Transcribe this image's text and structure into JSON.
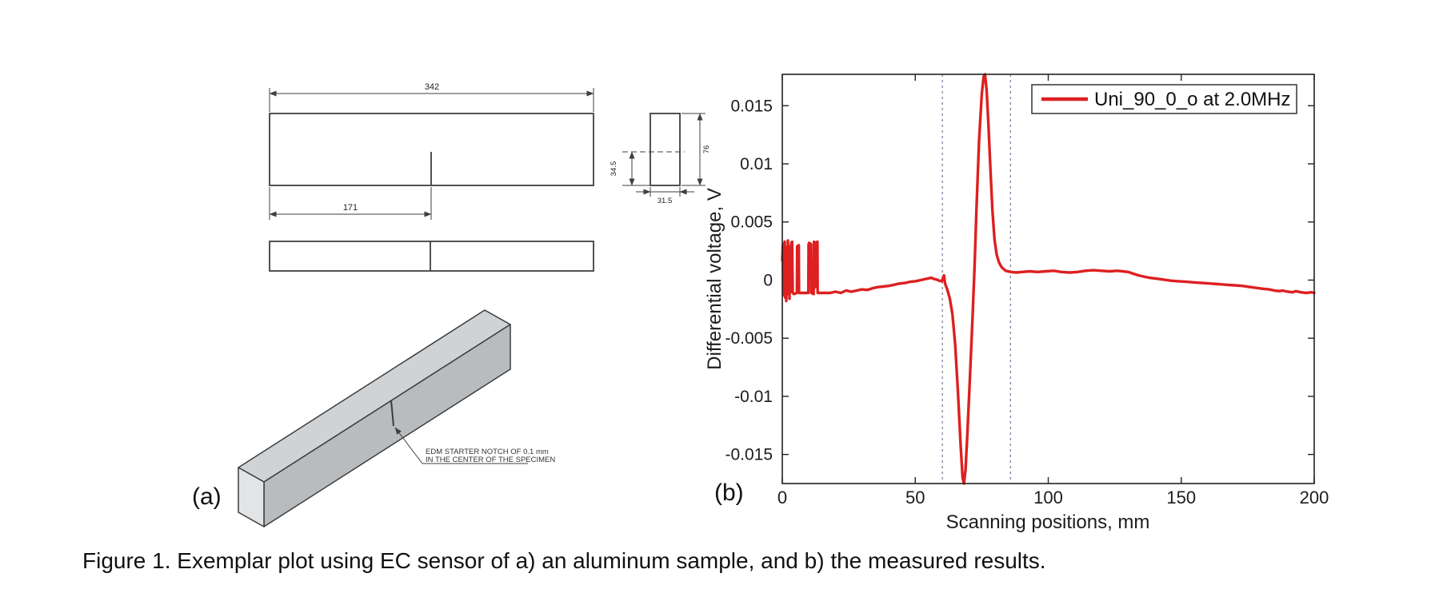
{
  "figure": {
    "panel_a_label": "(a)",
    "panel_b_label": "(b)",
    "caption": "Figure 1. Exemplar plot using EC sensor of a) an aluminum sample, and b) the measured results."
  },
  "drawing": {
    "dim_total_length": "342",
    "dim_notch_position": "171",
    "dim_thickness": "31.5",
    "dim_notch_depth_pos": "34.5",
    "dim_height": "76",
    "notch_note_line1": "EDM STARTER NOTCH OF 0.1 mm",
    "notch_note_line2": "IN THE CENTER OF THE SPECIMEN"
  },
  "chart_data": {
    "type": "line",
    "title": "",
    "xlabel": "Scanning positions, mm",
    "ylabel": "Differential voltage, V",
    "xlim": [
      0,
      200
    ],
    "ylim": [
      -0.0175,
      0.0177
    ],
    "xticks": [
      0,
      50,
      100,
      150,
      200
    ],
    "xtick_labels": [
      "0",
      "50",
      "100",
      "150",
      "200"
    ],
    "yticks": [
      -0.015,
      -0.01,
      -0.005,
      0,
      0.005,
      0.01,
      0.015
    ],
    "ytick_labels": [
      "-0.015",
      "-0.01",
      "-0.005",
      "0",
      "0.005",
      "0.01",
      "0.015"
    ],
    "grid": false,
    "box": true,
    "legend": {
      "position": "top-right",
      "label": "Uni_90_0_o at 2.0MHz"
    },
    "line_color": "#dd2020",
    "dashed_guides_x": [
      60.2,
      85.8
    ],
    "dashed_guide_color": "#7c82a0",
    "series": [
      {
        "name": "Uni_90_0_o at 2.0MHz",
        "color": "#dd2020",
        "points": [
          [
            0,
            0.0017
          ],
          [
            0.2,
            0.003
          ],
          [
            0.35,
            -0.0013
          ],
          [
            0.5,
            0.0031
          ],
          [
            0.7,
            0.0008
          ],
          [
            0.9,
            0.0033
          ],
          [
            1.1,
            -0.0015
          ],
          [
            1.3,
            0.0021
          ],
          [
            1.5,
            -0.0018
          ],
          [
            1.7,
            0.0028
          ],
          [
            1.9,
            -0.0008
          ],
          [
            2.1,
            0.0034
          ],
          [
            2.3,
            -0.0012
          ],
          [
            2.5,
            0.0016
          ],
          [
            2.7,
            -0.0016
          ],
          [
            2.9,
            0.0029
          ],
          [
            3.1,
            -0.001
          ],
          [
            3.4,
            0.0032
          ],
          [
            3.7,
            0.0033
          ],
          [
            3.9,
            -0.0011
          ],
          [
            4.3,
            -0.0012
          ],
          [
            5.5,
            -0.0011
          ],
          [
            5.6,
            0.0029
          ],
          [
            6.2,
            0.003
          ],
          [
            6.3,
            -0.0011
          ],
          [
            9.8,
            -0.0011
          ],
          [
            9.9,
            0.0031
          ],
          [
            10.1,
            0.0032
          ],
          [
            10.8,
            0.0031
          ],
          [
            10.9,
            -0.0011
          ],
          [
            11.8,
            -0.0012
          ],
          [
            11.9,
            0.0033
          ],
          [
            12.3,
            0.0032
          ],
          [
            12.4,
            -0.0006
          ],
          [
            12.5,
            0.0032
          ],
          [
            13.2,
            0.0033
          ],
          [
            13.3,
            -0.0011
          ],
          [
            14,
            -0.0011
          ],
          [
            16,
            -0.0011
          ],
          [
            18,
            -0.0011
          ],
          [
            20,
            -0.001
          ],
          [
            22,
            -0.0011
          ],
          [
            24,
            -0.0009
          ],
          [
            26,
            -0.001
          ],
          [
            28,
            -0.0009
          ],
          [
            30,
            -0.0008
          ],
          [
            32,
            -0.00085
          ],
          [
            34,
            -0.0007
          ],
          [
            36,
            -0.0006
          ],
          [
            38,
            -0.00055
          ],
          [
            40,
            -0.0005
          ],
          [
            42,
            -0.0004
          ],
          [
            44,
            -0.0003
          ],
          [
            46,
            -0.00025
          ],
          [
            48,
            -0.00015
          ],
          [
            50,
            -0.0001
          ],
          [
            52,
            0
          ],
          [
            54,
            0.0001
          ],
          [
            55,
            0.00015
          ],
          [
            56,
            0.0002
          ],
          [
            57,
            0.0001
          ],
          [
            58,
            5e-05
          ],
          [
            59,
            -5e-05
          ],
          [
            60,
            -0.0001
          ],
          [
            60.8,
            0.0004
          ],
          [
            61.2,
            -0.0003
          ],
          [
            62,
            -0.0008
          ],
          [
            63,
            -0.0016
          ],
          [
            64,
            -0.003
          ],
          [
            65,
            -0.0055
          ],
          [
            66,
            -0.0095
          ],
          [
            67,
            -0.014
          ],
          [
            67.8,
            -0.017
          ],
          [
            68.3,
            -0.0175
          ],
          [
            68.9,
            -0.0163
          ],
          [
            69.6,
            -0.0132
          ],
          [
            70.6,
            -0.0082
          ],
          [
            71.6,
            -0.0028
          ],
          [
            72.3,
            0.0012
          ],
          [
            73,
            0.006
          ],
          [
            74,
            0.012
          ],
          [
            75,
            0.016
          ],
          [
            75.7,
            0.0175
          ],
          [
            76.2,
            0.0177
          ],
          [
            76.8,
            0.0164
          ],
          [
            77.5,
            0.0134
          ],
          [
            78.3,
            0.0094
          ],
          [
            79,
            0.006
          ],
          [
            79.8,
            0.0035
          ],
          [
            80.6,
            0.0022
          ],
          [
            81.5,
            0.0015
          ],
          [
            82.5,
            0.0011
          ],
          [
            84,
            0.0008
          ],
          [
            86,
            0.0007
          ],
          [
            88,
            0.00065
          ],
          [
            90,
            0.0007
          ],
          [
            93,
            0.00075
          ],
          [
            96,
            0.0007
          ],
          [
            99,
            0.00075
          ],
          [
            102,
            0.0008
          ],
          [
            105,
            0.0007
          ],
          [
            108,
            0.00065
          ],
          [
            111,
            0.0007
          ],
          [
            114,
            0.0008
          ],
          [
            117,
            0.00085
          ],
          [
            120,
            0.0008
          ],
          [
            123,
            0.00075
          ],
          [
            126,
            0.0008
          ],
          [
            128,
            0.00075
          ],
          [
            130,
            0.0007
          ],
          [
            132,
            0.00055
          ],
          [
            134,
            0.0004
          ],
          [
            136,
            0.0003
          ],
          [
            138,
            0.0002
          ],
          [
            140,
            0.00015
          ],
          [
            143,
            5e-05
          ],
          [
            146,
            -5e-05
          ],
          [
            149,
            -0.0001
          ],
          [
            152,
            -0.00015
          ],
          [
            155,
            -0.0002
          ],
          [
            158,
            -0.00025
          ],
          [
            161,
            -0.0003
          ],
          [
            164,
            -0.00035
          ],
          [
            167,
            -0.0004
          ],
          [
            170,
            -0.00045
          ],
          [
            173,
            -0.0005
          ],
          [
            176,
            -0.0006
          ],
          [
            179,
            -0.0007
          ],
          [
            181,
            -0.00075
          ],
          [
            183,
            -0.0008
          ],
          [
            185,
            -0.0009
          ],
          [
            187,
            -0.00095
          ],
          [
            188,
            -0.0009
          ],
          [
            190,
            -0.001
          ],
          [
            192,
            -0.00105
          ],
          [
            193,
            -0.00095
          ],
          [
            195,
            -0.00105
          ],
          [
            197,
            -0.0011
          ],
          [
            199,
            -0.00105
          ],
          [
            200,
            -0.0011
          ]
        ]
      }
    ]
  }
}
